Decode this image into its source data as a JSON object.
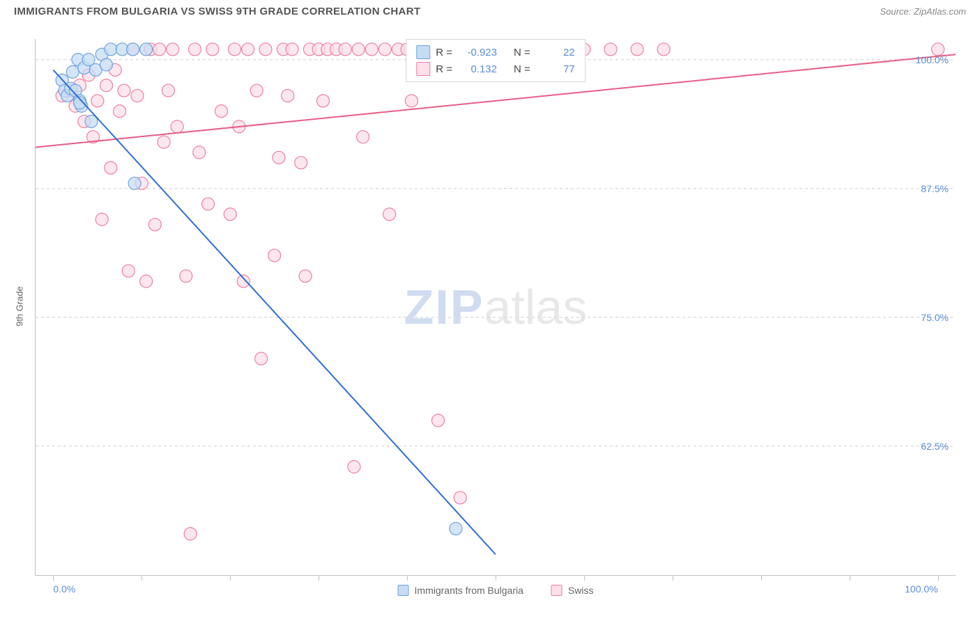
{
  "header": {
    "title": "IMMIGRANTS FROM BULGARIA VS SWISS 9TH GRADE CORRELATION CHART",
    "source": "Source: ZipAtlas.com"
  },
  "y_axis_label": "9th Grade",
  "watermark": {
    "zip": "ZIP",
    "atlas": "atlas"
  },
  "chart": {
    "type": "scatter-correlation",
    "background_color": "#ffffff",
    "grid_color": "#dddddd",
    "axis_color": "#c0c0c0",
    "tick_label_color": "#5b8dd6",
    "x_domain": [
      -2,
      102
    ],
    "y_domain": [
      50,
      102
    ],
    "y_ticks": [
      62.5,
      75.0,
      87.5,
      100.0
    ],
    "y_tick_labels": [
      "62.5%",
      "75.0%",
      "87.5%",
      "100.0%"
    ],
    "x_ticks": [
      0,
      10,
      20,
      30,
      40,
      50,
      60,
      70,
      80,
      90,
      100
    ],
    "x_tick_labels": {
      "0": "0.0%",
      "100": "100.0%"
    },
    "marker_radius": 9,
    "marker_stroke_width": 1.2,
    "line_width": 2
  },
  "series": {
    "bulgaria": {
      "label": "Immigrants from Bulgaria",
      "fill": "#c6dcf4",
      "stroke": "#6fa3dd",
      "line_color": "#2e6fd6",
      "R": "-0.923",
      "N": "22",
      "regression": {
        "x1": 0,
        "y1": 99.0,
        "x2": 50,
        "y2": 52.0
      },
      "points": [
        [
          1.0,
          98.0
        ],
        [
          1.3,
          97.0
        ],
        [
          1.6,
          96.5
        ],
        [
          2.0,
          97.2
        ],
        [
          2.2,
          98.8
        ],
        [
          2.5,
          97.0
        ],
        [
          2.8,
          100.0
        ],
        [
          3.0,
          96.0
        ],
        [
          3.2,
          95.5
        ],
        [
          3.5,
          99.2
        ],
        [
          4.0,
          100.0
        ],
        [
          4.3,
          94.0
        ],
        [
          4.8,
          99.0
        ],
        [
          5.5,
          100.5
        ],
        [
          6.0,
          99.5
        ],
        [
          6.5,
          101.0
        ],
        [
          7.8,
          101.0
        ],
        [
          9.0,
          101.0
        ],
        [
          10.5,
          101.0
        ],
        [
          9.2,
          88.0
        ],
        [
          3.0,
          95.8
        ],
        [
          45.5,
          54.5
        ]
      ]
    },
    "swiss": {
      "label": "Swiss",
      "fill": "#fcdfe8",
      "stroke": "#ec809f",
      "line_color": "#e85d86",
      "R": "0.132",
      "N": "77",
      "regression": {
        "x1": -2,
        "y1": 91.5,
        "x2": 102,
        "y2": 100.5
      },
      "points": [
        [
          1.0,
          96.5
        ],
        [
          2.0,
          97.0
        ],
        [
          2.5,
          95.5
        ],
        [
          3.0,
          97.5
        ],
        [
          3.5,
          94.0
        ],
        [
          4.0,
          98.5
        ],
        [
          4.5,
          92.5
        ],
        [
          5.0,
          96.0
        ],
        [
          5.5,
          84.5
        ],
        [
          6.0,
          97.5
        ],
        [
          6.5,
          89.5
        ],
        [
          7.0,
          99.0
        ],
        [
          7.5,
          95.0
        ],
        [
          8.0,
          97.0
        ],
        [
          8.5,
          79.5
        ],
        [
          9.0,
          101.0
        ],
        [
          9.5,
          96.5
        ],
        [
          10.0,
          88.0
        ],
        [
          10.5,
          78.5
        ],
        [
          11.0,
          101.0
        ],
        [
          11.5,
          84.0
        ],
        [
          12.0,
          101.0
        ],
        [
          12.5,
          92.0
        ],
        [
          13.0,
          97.0
        ],
        [
          13.5,
          101.0
        ],
        [
          14.0,
          93.5
        ],
        [
          15.0,
          79.0
        ],
        [
          15.5,
          54.0
        ],
        [
          16.0,
          101.0
        ],
        [
          16.5,
          91.0
        ],
        [
          17.5,
          86.0
        ],
        [
          18.0,
          101.0
        ],
        [
          19.0,
          95.0
        ],
        [
          20.0,
          85.0
        ],
        [
          20.5,
          101.0
        ],
        [
          21.0,
          93.5
        ],
        [
          21.5,
          78.5
        ],
        [
          22.0,
          101.0
        ],
        [
          23.0,
          97.0
        ],
        [
          23.5,
          71.0
        ],
        [
          24.0,
          101.0
        ],
        [
          25.0,
          81.0
        ],
        [
          25.5,
          90.5
        ],
        [
          26.0,
          101.0
        ],
        [
          26.5,
          96.5
        ],
        [
          27.0,
          101.0
        ],
        [
          28.0,
          90.0
        ],
        [
          28.5,
          79.0
        ],
        [
          29.0,
          101.0
        ],
        [
          30.0,
          101.0
        ],
        [
          30.5,
          96.0
        ],
        [
          31.0,
          101.0
        ],
        [
          32.0,
          101.0
        ],
        [
          33.0,
          101.0
        ],
        [
          34.0,
          60.5
        ],
        [
          34.5,
          101.0
        ],
        [
          35.0,
          92.5
        ],
        [
          36.0,
          101.0
        ],
        [
          37.5,
          101.0
        ],
        [
          38.0,
          85.0
        ],
        [
          39.0,
          101.0
        ],
        [
          40.0,
          101.0
        ],
        [
          40.5,
          96.0
        ],
        [
          42.0,
          101.0
        ],
        [
          43.0,
          101.0
        ],
        [
          43.5,
          65.0
        ],
        [
          45.0,
          101.0
        ],
        [
          46.0,
          57.5
        ],
        [
          47.0,
          101.0
        ],
        [
          50.0,
          101.0
        ],
        [
          53.0,
          101.0
        ],
        [
          56.0,
          101.0
        ],
        [
          60.0,
          101.0
        ],
        [
          63.0,
          101.0
        ],
        [
          66.0,
          101.0
        ],
        [
          69.0,
          101.0
        ],
        [
          100.0,
          101.0
        ]
      ]
    }
  },
  "legend_top": {
    "R_label": "R =",
    "N_label": "N ="
  }
}
